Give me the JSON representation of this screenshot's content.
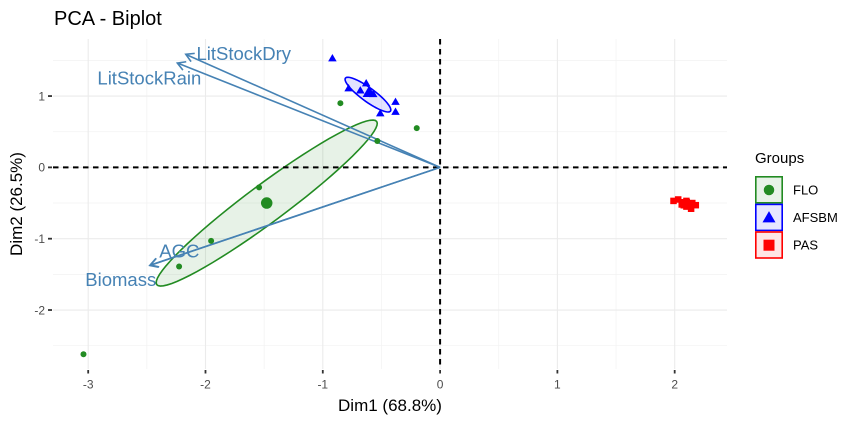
{
  "chart_data": {
    "type": "scatter",
    "title": "PCA - Biplot",
    "xlabel": "Dim1 (68.8%)",
    "ylabel": "Dim2 (26.5%)",
    "xlim": [
      -3.3,
      2.446
    ],
    "ylim": [
      -2.827,
      1.8
    ],
    "x_ticks": [
      -3,
      -2,
      -1,
      0,
      1,
      2
    ],
    "x_tick_labels": [
      "-3",
      "-2",
      "-1",
      "0",
      "1",
      "2"
    ],
    "y_ticks": [
      -2,
      -1,
      0,
      1
    ],
    "y_tick_labels": [
      "-2",
      "-1",
      "0",
      "1"
    ],
    "grid": true,
    "reference_lines": {
      "x": 0,
      "y": 0,
      "style": "dashed"
    },
    "legend": {
      "title": "Groups",
      "position": "right"
    },
    "series": [
      {
        "name": "FLO",
        "color": "#228B22",
        "key_fill": "#E8F3E8",
        "shape": "circle",
        "points": [
          [
            -3.04,
            -2.62
          ],
          [
            -2.225,
            -1.39
          ],
          [
            -1.952,
            -1.03
          ],
          [
            -1.543,
            -0.28
          ],
          [
            -0.85,
            0.9
          ],
          [
            -0.535,
            0.37
          ],
          [
            -0.199,
            0.55
          ]
        ],
        "centroid": [
          -1.478,
          -0.5
        ],
        "ellipse": {
          "center": [
            -1.478,
            -0.5
          ],
          "semi_major": [
            0.9375,
            1.144
          ],
          "semi_minor": [
            0.0963,
            -0.2145
          ]
        }
      },
      {
        "name": "AFSBM",
        "color": "#0000FF",
        "key_fill": "#E6E6FF",
        "shape": "triangle",
        "points": [
          [
            -0.918,
            1.52
          ],
          [
            -0.78,
            1.1
          ],
          [
            -0.68,
            1.07
          ],
          [
            -0.63,
            1.17
          ],
          [
            -0.6,
            1.04
          ],
          [
            -0.57,
            1.02
          ],
          [
            -0.51,
            0.75
          ],
          [
            -0.38,
            0.91
          ],
          [
            -0.38,
            0.77
          ]
        ],
        "centroid": [
          -0.605,
          1.04
        ],
        "ellipse": {
          "center": [
            -0.615,
            1.02
          ],
          "semi_major": [
            0.192,
            -0.231
          ],
          "semi_minor": [
            -0.034,
            -0.077
          ]
        }
      },
      {
        "name": "PAS",
        "color": "#FF0000",
        "key_fill": "#FFE6E6",
        "shape": "square",
        "points": [
          [
            1.99,
            -0.47
          ],
          [
            2.03,
            -0.45
          ],
          [
            2.06,
            -0.52
          ],
          [
            2.07,
            -0.49
          ],
          [
            2.1,
            -0.47
          ],
          [
            2.1,
            -0.55
          ],
          [
            2.12,
            -0.52
          ],
          [
            2.14,
            -0.58
          ],
          [
            2.15,
            -0.5
          ],
          [
            2.18,
            -0.53
          ]
        ],
        "centroid": [
          2.09,
          -0.51
        ],
        "ellipse": null
      }
    ],
    "variables": {
      "color": "#4682B4",
      "origin": [
        0,
        0
      ],
      "arrows": [
        {
          "name": "LitStockDry",
          "x": -2.168,
          "y": 1.585
        },
        {
          "name": "LitStockRain",
          "x": -2.24,
          "y": 1.463
        },
        {
          "name": "AGC",
          "x": -2.47,
          "y": -1.37
        },
        {
          "name": "Biomass",
          "x": -2.475,
          "y": -1.375
        }
      ]
    }
  }
}
